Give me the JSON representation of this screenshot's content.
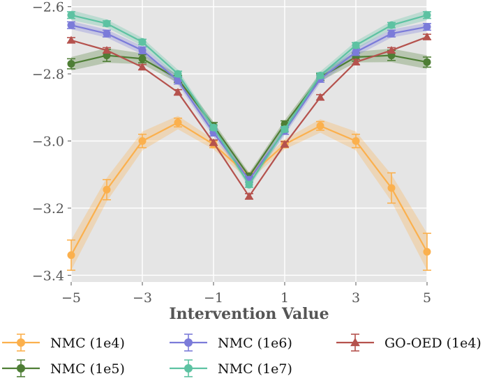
{
  "chart_data": {
    "type": "line",
    "title": "",
    "xlabel": "Intervention Value",
    "ylabel": "",
    "xlim": [
      -5,
      5
    ],
    "ylim": [
      -3.42,
      -2.58
    ],
    "x_ticks": [
      -5,
      -3,
      -1,
      1,
      3,
      5
    ],
    "x_tick_labels": [
      "−5",
      "−3",
      "−1",
      "1",
      "3",
      "5"
    ],
    "y_ticks": [
      -2.6,
      -2.8,
      -3.0,
      -3.2,
      -3.4
    ],
    "y_tick_labels": [
      "−2.6",
      "−2.8",
      "−3.0",
      "−3.2",
      "−3.4"
    ],
    "grid": true,
    "x": [
      -5,
      -4,
      -3,
      -2,
      -1,
      0,
      1,
      2,
      3,
      4,
      5
    ],
    "series": [
      {
        "name": "NMC (1e4)",
        "color": "#FBB04D",
        "marker": "circle",
        "values": [
          -3.34,
          -3.145,
          -3.0,
          -2.945,
          -3.01,
          -3.105,
          -3.01,
          -2.955,
          -3.0,
          -3.14,
          -3.33
        ],
        "err": [
          0.045,
          0.03,
          0.02,
          0.013,
          0.01,
          0.008,
          0.01,
          0.013,
          0.02,
          0.045,
          0.055
        ],
        "band": [
          0.045,
          0.035,
          0.028,
          0.02,
          0.015,
          0.012,
          0.015,
          0.02,
          0.028,
          0.04,
          0.055
        ]
      },
      {
        "name": "NMC (1e5)",
        "color": "#4E7E35",
        "marker": "circle",
        "values": [
          -2.77,
          -2.745,
          -2.755,
          -2.815,
          -2.955,
          -3.105,
          -2.95,
          -2.81,
          -2.75,
          -2.745,
          -2.765
        ],
        "err": [
          0.015,
          0.018,
          0.012,
          0.01,
          0.01,
          0.008,
          0.01,
          0.01,
          0.012,
          0.015,
          0.015
        ],
        "band": [
          0.02,
          0.022,
          0.016,
          0.012,
          0.012,
          0.01,
          0.012,
          0.012,
          0.016,
          0.02,
          0.02
        ]
      },
      {
        "name": "NMC (1e6)",
        "color": "#7B7BD9",
        "marker": "circle",
        "values": [
          -2.655,
          -2.68,
          -2.73,
          -2.82,
          -2.975,
          -3.115,
          -2.97,
          -2.815,
          -2.735,
          -2.68,
          -2.66
        ],
        "err": [
          0.01,
          0.01,
          0.01,
          0.01,
          0.01,
          0.008,
          0.01,
          0.01,
          0.01,
          0.01,
          0.01
        ],
        "band": [
          0.012,
          0.012,
          0.012,
          0.012,
          0.012,
          0.01,
          0.012,
          0.012,
          0.012,
          0.012,
          0.012
        ]
      },
      {
        "name": "NMC (1e7)",
        "color": "#5DC2A2",
        "marker": "circle",
        "values": [
          -2.625,
          -2.65,
          -2.705,
          -2.8,
          -2.96,
          -3.13,
          -2.965,
          -2.805,
          -2.715,
          -2.655,
          -2.625
        ],
        "err": [
          0.01,
          0.008,
          0.008,
          0.008,
          0.008,
          0.008,
          0.008,
          0.008,
          0.008,
          0.008,
          0.01
        ],
        "band": [
          0.015,
          0.012,
          0.012,
          0.012,
          0.012,
          0.01,
          0.012,
          0.012,
          0.012,
          0.012,
          0.015
        ]
      },
      {
        "name": "GO-OED (1e4)",
        "color": "#B5524D",
        "marker": "triangle",
        "values": [
          -2.7,
          -2.73,
          -2.78,
          -2.855,
          -3.005,
          -3.165,
          -3.01,
          -2.87,
          -2.765,
          -2.73,
          -2.69
        ],
        "err": [
          0.008,
          0.008,
          0.008,
          0.008,
          0.008,
          0.008,
          0.008,
          0.008,
          0.008,
          0.008,
          0.008
        ],
        "band": [
          0,
          0,
          0,
          0,
          0,
          0,
          0,
          0,
          0,
          0,
          0
        ]
      }
    ],
    "legend_position": "bottom"
  }
}
